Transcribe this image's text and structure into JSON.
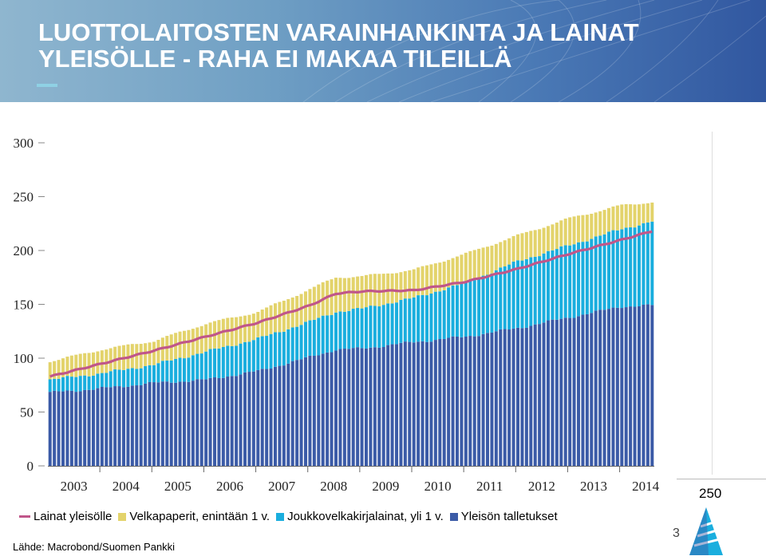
{
  "header": {
    "title_line1": "LUOTTOLAITOSTEN VARAINHANKINTA JA LAINAT",
    "title_line2": "YLEISÖLLE - RAHA EI MAKAA TILEILLÄ"
  },
  "source": "Lähde: Macrobond/Suomen Pankki",
  "side_number": "250",
  "page_number": "3",
  "colors": {
    "deposits": "#3b5ba7",
    "bonds": "#1aaede",
    "papers": "#e3d36b",
    "loans": "#c0568a",
    "banner": "#4a79b5"
  },
  "chart_data": {
    "type": "bar",
    "stacked": true,
    "ylim": [
      0,
      300
    ],
    "yticks": [
      0,
      50,
      100,
      150,
      200,
      250,
      300
    ],
    "year_labels": [
      "2003",
      "2004",
      "2005",
      "2006",
      "2007",
      "2008",
      "2009",
      "2010",
      "2011",
      "2012",
      "2013",
      "2014"
    ],
    "x_start": "2003-01",
    "x_end": "2014-08",
    "frequency": "monthly",
    "grid": false,
    "legend_position": "bottom",
    "series": [
      {
        "name": "Yleisön talletukset",
        "color": "#3b5ba7",
        "keypoints": [
          [
            0,
            68
          ],
          [
            12,
            72
          ],
          [
            24,
            77
          ],
          [
            36,
            80
          ],
          [
            48,
            88
          ],
          [
            60,
            101
          ],
          [
            66,
            108
          ],
          [
            72,
            109
          ],
          [
            84,
            115
          ],
          [
            96,
            120
          ],
          [
            108,
            128
          ],
          [
            120,
            138
          ],
          [
            132,
            148
          ],
          [
            139,
            149
          ]
        ]
      },
      {
        "name": "Joukkovelkakirjalainat, yli 1 v.",
        "color": "#1aaede",
        "keypoints": [
          [
            0,
            12
          ],
          [
            12,
            14
          ],
          [
            24,
            17
          ],
          [
            36,
            26
          ],
          [
            48,
            30
          ],
          [
            60,
            33
          ],
          [
            66,
            35
          ],
          [
            72,
            37
          ],
          [
            84,
            41
          ],
          [
            96,
            50
          ],
          [
            108,
            62
          ],
          [
            120,
            67
          ],
          [
            132,
            72
          ],
          [
            139,
            78
          ]
        ]
      },
      {
        "name": "Velkapaperit, enintään 1 v.",
        "color": "#e3d36b",
        "keypoints": [
          [
            0,
            17
          ],
          [
            12,
            22
          ],
          [
            24,
            22
          ],
          [
            36,
            26
          ],
          [
            48,
            25
          ],
          [
            60,
            30
          ],
          [
            66,
            32
          ],
          [
            72,
            30
          ],
          [
            84,
            26
          ],
          [
            96,
            27
          ],
          [
            108,
            24
          ],
          [
            120,
            25
          ],
          [
            132,
            22
          ],
          [
            139,
            18
          ]
        ]
      }
    ],
    "line_series": {
      "name": "Lainat yleisölle",
      "color": "#c0568a",
      "keypoints": [
        [
          0,
          83
        ],
        [
          12,
          95
        ],
        [
          24,
          107
        ],
        [
          36,
          120
        ],
        [
          48,
          133
        ],
        [
          60,
          149
        ],
        [
          66,
          160
        ],
        [
          72,
          162
        ],
        [
          84,
          163
        ],
        [
          96,
          171
        ],
        [
          108,
          183
        ],
        [
          120,
          197
        ],
        [
          132,
          210
        ],
        [
          139,
          218
        ]
      ]
    },
    "legend": [
      {
        "label": "Lainat yleisölle",
        "kind": "line",
        "color": "#c0568a"
      },
      {
        "label": "Velkapaperit, enintään 1 v.",
        "kind": "box",
        "color": "#e3d36b"
      },
      {
        "label": "Joukkovelkakirjalainat, yli 1 v.",
        "kind": "box",
        "color": "#1aaede"
      },
      {
        "label": "Yleisön talletukset",
        "kind": "box",
        "color": "#3b5ba7"
      }
    ]
  }
}
